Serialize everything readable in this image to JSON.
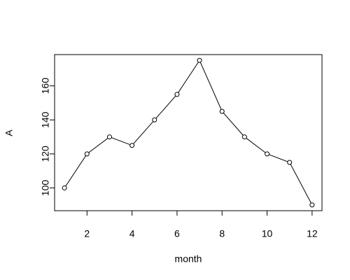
{
  "chart_data": {
    "type": "line",
    "x_label": "month",
    "y_label": "A",
    "x": [
      1,
      2,
      3,
      4,
      5,
      6,
      7,
      8,
      9,
      10,
      11,
      12
    ],
    "values": [
      100,
      120,
      130,
      125,
      140,
      155,
      175,
      145,
      130,
      120,
      115,
      90
    ],
    "color": "#000000",
    "xlim": [
      0.56,
      12.44
    ],
    "xticks": [
      2,
      4,
      6,
      8,
      10,
      12
    ],
    "ylim": [
      86.6,
      178.4
    ],
    "yticks": [
      100,
      120,
      140,
      160
    ]
  }
}
